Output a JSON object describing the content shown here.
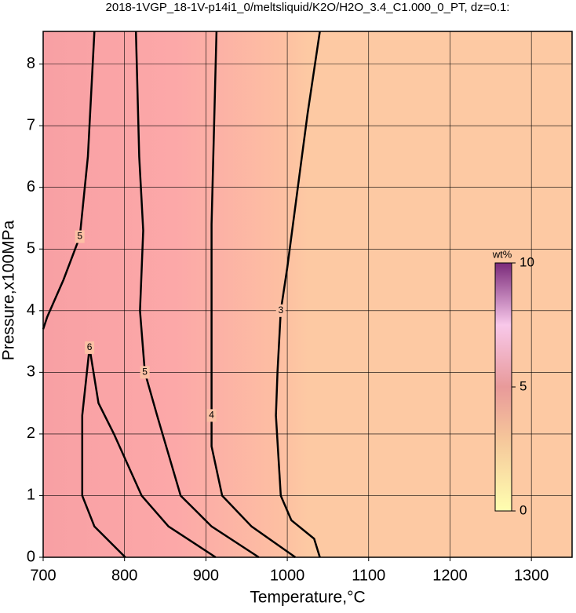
{
  "chart_data": {
    "type": "contour",
    "title": "2018-1VGP_18-1V-p14i1_0/meltsliquid/K2O/H2O_3.4_C1.000_0_PT, dz=0.1:",
    "x_label": "Temperature,°C",
    "y_label": "Pressure,x100MPa",
    "xlim": [
      700,
      1350
    ],
    "ylim": [
      0,
      8.53
    ],
    "xticks": [
      700,
      800,
      900,
      1000,
      1100,
      1200,
      1300
    ],
    "yticks": [
      0,
      1,
      2,
      3,
      4,
      5,
      6,
      7,
      8
    ],
    "grid": true,
    "contours": [
      {
        "level": 3,
        "x": [
          1040,
          1033,
          1005,
          992,
          986,
          988,
          992,
          1000,
          1006,
          1015,
          1025,
          1040
        ],
        "y": [
          0,
          0.3,
          0.6,
          1,
          2.3,
          3,
          4,
          4.7,
          5.3,
          6.2,
          7.2,
          8.53
        ]
      },
      {
        "level": 4,
        "x": [
          1010,
          956,
          920,
          907,
          907,
          907,
          907,
          910,
          913
        ],
        "y": [
          0,
          0.5,
          1,
          1.8,
          2.3,
          3.5,
          5.4,
          7,
          8.53
        ]
      },
      {
        "level": 5,
        "x": [
          965,
          907,
          869,
          840,
          825,
          819,
          823,
          818,
          814
        ],
        "y": [
          0,
          0.5,
          1,
          2.3,
          3,
          4,
          5.3,
          6.5,
          8.53
        ]
      },
      {
        "level": 6,
        "x": [
          912,
          854,
          821,
          787,
          768,
          757,
          748,
          748,
          763,
          801
        ],
        "y": [
          0,
          0.5,
          1,
          2,
          2.5,
          3.4,
          2.3,
          1,
          0.5,
          0
        ]
      },
      {
        "level": 5,
        "x": [
          700,
          705,
          725,
          745,
          755,
          763
        ],
        "y": [
          3.7,
          3.9,
          4.5,
          5.2,
          6.5,
          8.53
        ]
      }
    ],
    "colorbar": {
      "label": "wt%",
      "lim": [
        0,
        10
      ],
      "ticks": [
        0,
        5,
        10
      ]
    }
  }
}
